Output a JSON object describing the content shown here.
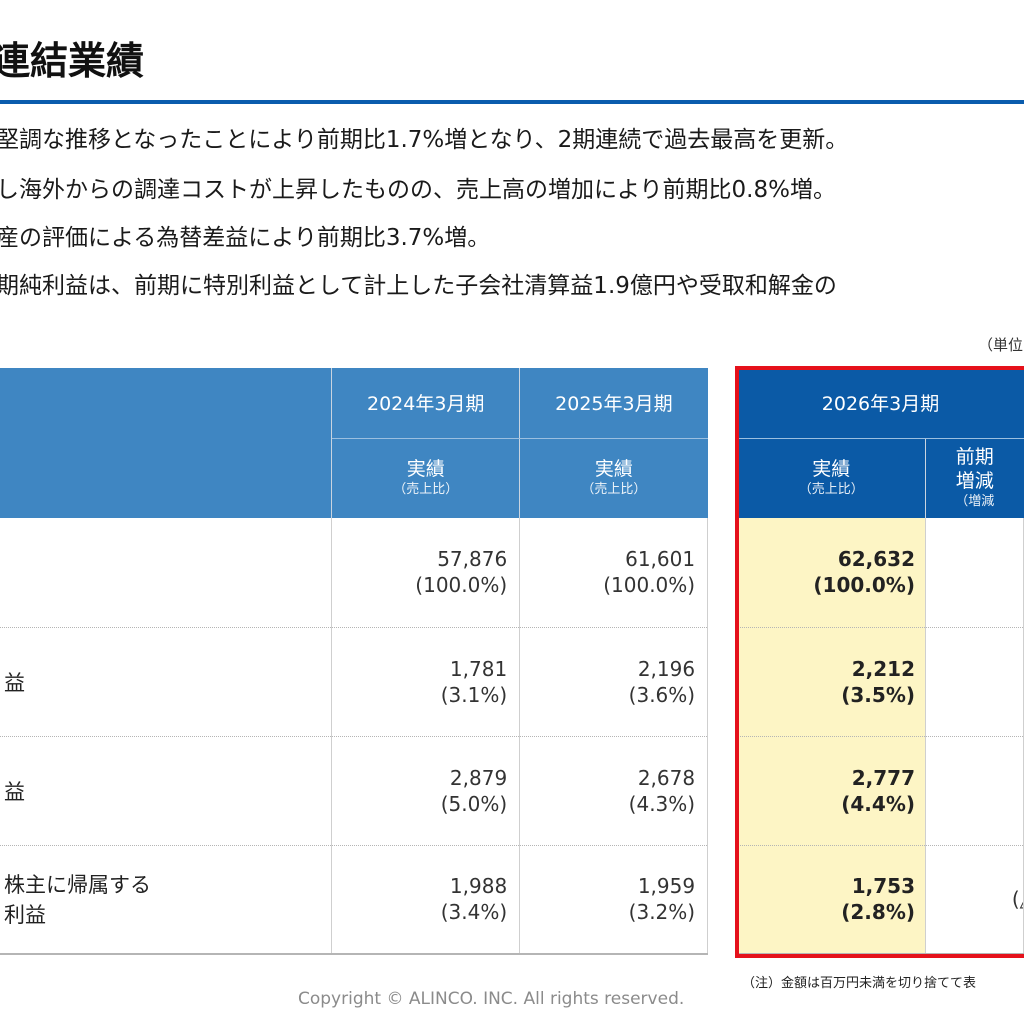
{
  "page": {
    "title": "連結業績",
    "bullets": [
      "堅調な推移となったことにより前期比1.7%増となり、2期連続で過去最高を更新。",
      "し海外からの調達コストが上昇したものの、売上高の増加により前期比0.8%増。",
      "産の評価による為替差益により前期比3.7%増。",
      "期純利益は、前期に特別利益として計上した子会社清算益1.9億円や受取和解金の"
    ],
    "unit_note": "（単位"
  },
  "table": {
    "periods": [
      "2024年3月期",
      "2025年3月期",
      "2026年3月期"
    ],
    "sub_main": "実績",
    "sub_note": "（売上比）",
    "yoy_main_1": "前期",
    "yoy_main_2": "増減",
    "yoy_note": "（増減",
    "rows": [
      {
        "label_1": "",
        "label_2": "",
        "v2024": "57,876",
        "r2024": "(100.0%)",
        "v2025": "61,601",
        "r2025": "(100.0%)",
        "v2026": "62,632",
        "r2026": "(100.0%)",
        "yoy_1": "",
        "yoy_2": "("
      },
      {
        "label_1": "益",
        "label_2": "",
        "v2024": "1,781",
        "r2024": "(3.1%)",
        "v2025": "2,196",
        "r2025": "(3.6%)",
        "v2026": "2,212",
        "r2026": "(3.5%)",
        "yoy_1": "",
        "yoy_2": "("
      },
      {
        "label_1": "益",
        "label_2": "",
        "v2024": "2,879",
        "r2024": "(5.0%)",
        "v2025": "2,678",
        "r2025": "(4.3%)",
        "v2026": "2,777",
        "r2026": "(4.4%)",
        "yoy_1": "",
        "yoy_2": "("
      },
      {
        "label_1": "株主に帰属する",
        "label_2": "利益",
        "v2024": "1,988",
        "r2024": "(3.4%)",
        "v2025": "1,959",
        "r2025": "(3.2%)",
        "v2026": "1,753",
        "r2026": "(2.8%)",
        "yoy_1": "",
        "yoy_2": "(△"
      }
    ]
  },
  "footnote": "（注）金額は百万円未満を切り捨てて表",
  "copyright": "Copyright © ALINCO. INC. All rights reserved.",
  "colors": {
    "header_blue": "#3f86c2",
    "header_highlight_blue": "#0b5aa6",
    "title_rule": "#0a5cad",
    "highlight_box": "#e5111b",
    "highlight_fill": "#fdf5c5"
  }
}
